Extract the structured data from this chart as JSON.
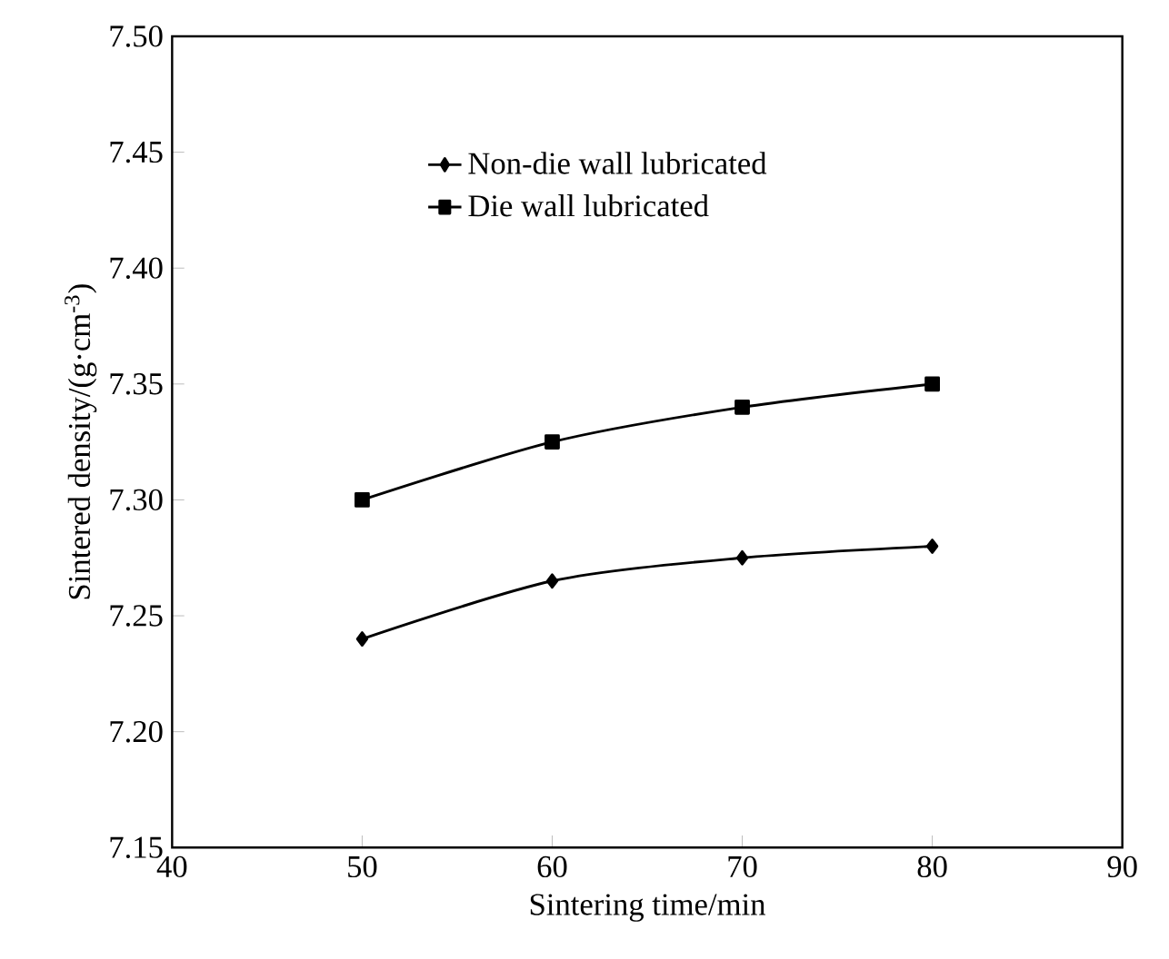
{
  "chart_data": {
    "type": "line",
    "xlabel": "Sintering time/min",
    "ylabel": "Sintered density/(g·cm$^{-3}$)",
    "x": [
      50,
      60,
      70,
      80
    ],
    "series": [
      {
        "name": "Non-die wall lubricated",
        "color": "#000000",
        "marker": "diamond",
        "values": [
          7.24,
          7.265,
          7.275,
          7.28
        ]
      },
      {
        "name": "Die wall lubricated",
        "color": "#000000",
        "marker": "square",
        "values": [
          7.3,
          7.325,
          7.34,
          7.35
        ]
      }
    ],
    "xlim": [
      40,
      90
    ],
    "xticks": [
      40,
      50,
      60,
      70,
      80,
      90
    ],
    "ylim": [
      7.15,
      7.5
    ],
    "yticks": [
      {
        "value": 7.15,
        "label": "7.15"
      },
      {
        "value": 7.2,
        "label": "7.20"
      },
      {
        "value": 7.25,
        "label": "7.25"
      },
      {
        "value": 7.3,
        "label": "7.30"
      },
      {
        "value": 7.35,
        "label": "7.35"
      },
      {
        "value": 7.4,
        "label": "7.40"
      },
      {
        "value": 7.45,
        "label": "7.45"
      },
      {
        "value": 7.5,
        "label": "7.50"
      }
    ],
    "legend": "top left",
    "grid": false,
    "line_style": "solid"
  }
}
